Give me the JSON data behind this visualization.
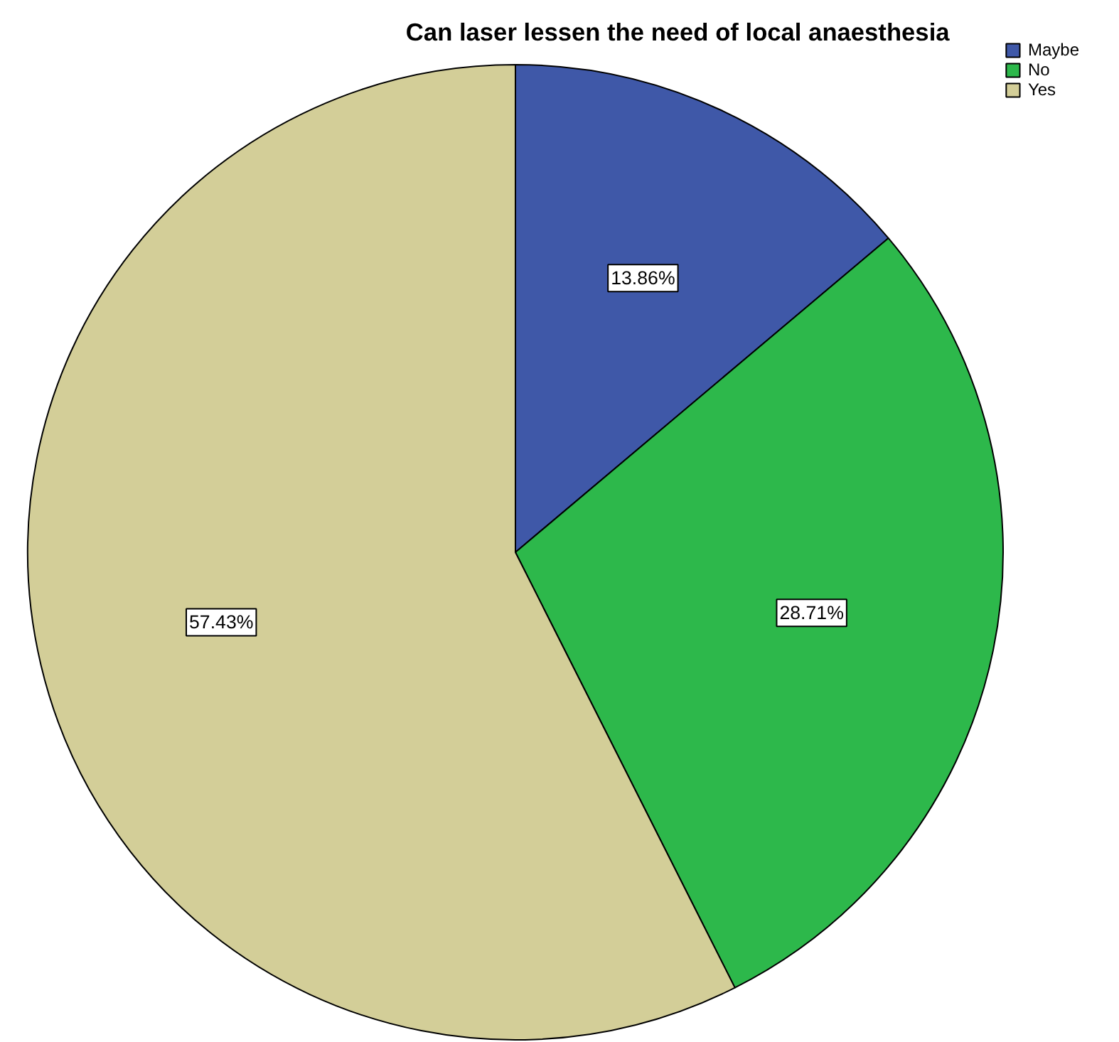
{
  "chart_data": {
    "type": "pie",
    "title": "Can laser lessen the need of  local anaesthesia",
    "categories": [
      "Maybe",
      "No",
      "Yes"
    ],
    "values": [
      13.86,
      28.71,
      57.43
    ],
    "colors": [
      "#3f58a8",
      "#2db84b",
      "#d3ce98"
    ],
    "value_labels": [
      "13.86%",
      "28.71%",
      "57.43%"
    ],
    "legend": "top right"
  }
}
